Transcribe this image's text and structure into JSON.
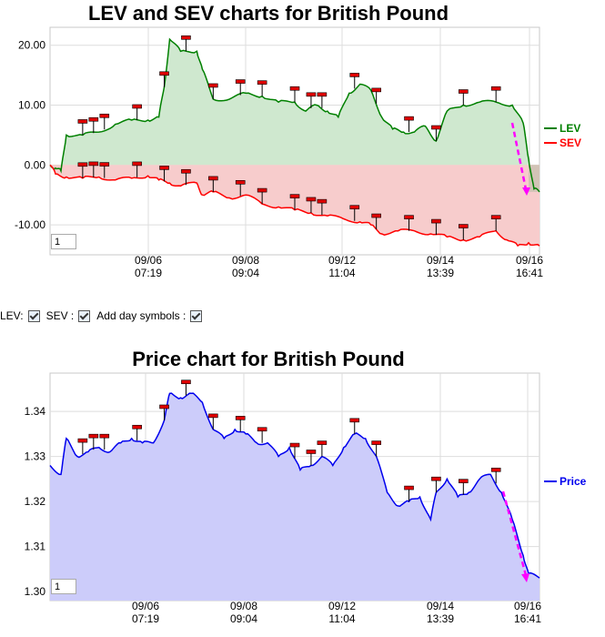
{
  "chart_data": [
    {
      "type": "line",
      "title": "LEV and SEV charts for British Pound",
      "x_ticks": [
        "09/06\n07:19",
        "09/08\n09:04",
        "09/12\n11:04",
        "09/14\n13:39",
        "09/16\n16:41"
      ],
      "y_ticks": [
        "20.00",
        "10.00",
        "0.00",
        "-10.00"
      ],
      "ylim": [
        -15,
        23
      ],
      "grid": true,
      "legend_position": "right",
      "series": [
        {
          "name": "LEV",
          "color": "#008000",
          "fill": "#cfe8cf",
          "points": [
            [
              0,
              0
            ],
            [
              1,
              -0.5
            ],
            [
              2,
              -1
            ],
            [
              3,
              5
            ],
            [
              6,
              5
            ],
            [
              9,
              5.5
            ],
            [
              12,
              6.8
            ],
            [
              15,
              7.5
            ],
            [
              18,
              7.5
            ],
            [
              20,
              8
            ],
            [
              21,
              13
            ],
            [
              22,
              21
            ],
            [
              24,
              19
            ],
            [
              27,
              19
            ],
            [
              28,
              16
            ],
            [
              30,
              11
            ],
            [
              33,
              11
            ],
            [
              36,
              12
            ],
            [
              39,
              11.5
            ],
            [
              42,
              10.5
            ],
            [
              45,
              10.5
            ],
            [
              47,
              9
            ],
            [
              49,
              10
            ],
            [
              51,
              9
            ],
            [
              53,
              8
            ],
            [
              55,
              12
            ],
            [
              57,
              13.5
            ],
            [
              59,
              12.5
            ],
            [
              61,
              8
            ],
            [
              63,
              6
            ],
            [
              65,
              5.5
            ],
            [
              67,
              5.5
            ],
            [
              69,
              6.5
            ],
            [
              71,
              4
            ],
            [
              73,
              9
            ],
            [
              76,
              10
            ],
            [
              79,
              10.5
            ],
            [
              82,
              10.5
            ],
            [
              85,
              10
            ],
            [
              87,
              7
            ],
            [
              88,
              1
            ],
            [
              89,
              -4
            ],
            [
              90,
              -4.5
            ]
          ],
          "day_symbol_points": [
            6,
            8,
            10,
            16,
            21,
            25,
            30,
            35,
            39,
            45,
            48,
            50,
            56,
            60,
            66,
            71,
            76,
            82
          ]
        },
        {
          "name": "SEV",
          "color": "#ff0000",
          "fill": "#f7cccc",
          "points": [
            [
              0,
              0
            ],
            [
              1,
              -1.5
            ],
            [
              3,
              -2
            ],
            [
              6,
              -2.2
            ],
            [
              9,
              -2
            ],
            [
              12,
              -2.5
            ],
            [
              15,
              -2.2
            ],
            [
              18,
              -1.8
            ],
            [
              20,
              -2.5
            ],
            [
              22,
              -3
            ],
            [
              24,
              -3.5
            ],
            [
              27,
              -3
            ],
            [
              28,
              -5
            ],
            [
              30,
              -4.5
            ],
            [
              33,
              -5.5
            ],
            [
              36,
              -5
            ],
            [
              39,
              -6.5
            ],
            [
              42,
              -7
            ],
            [
              45,
              -7.5
            ],
            [
              48,
              -8
            ],
            [
              51,
              -8.5
            ],
            [
              54,
              -9
            ],
            [
              57,
              -9.5
            ],
            [
              59,
              -10
            ],
            [
              61,
              -11.5
            ],
            [
              64,
              -11
            ],
            [
              67,
              -11
            ],
            [
              70,
              -11.5
            ],
            [
              73,
              -12
            ],
            [
              76,
              -12.5
            ],
            [
              79,
              -12
            ],
            [
              82,
              -11
            ],
            [
              84,
              -12.5
            ],
            [
              86,
              -13.5
            ],
            [
              88,
              -13
            ],
            [
              90,
              -13.5
            ]
          ],
          "day_symbol_points": [
            6,
            8,
            10,
            16,
            21,
            25,
            30,
            35,
            39,
            45,
            48,
            50,
            56,
            60,
            66,
            71,
            76,
            82
          ]
        }
      ]
    },
    {
      "type": "area",
      "title": "Price chart for British Pound",
      "x_ticks": [
        "09/06\n07:19",
        "09/08\n09:04",
        "09/12\n11:04",
        "09/14\n13:39",
        "09/16\n16:41"
      ],
      "y_ticks": [
        "1.34",
        "1.33",
        "1.32",
        "1.31",
        "1.30"
      ],
      "ylim": [
        1.298,
        1.3485
      ],
      "grid": true,
      "legend_position": "right",
      "series": [
        {
          "name": "Price",
          "color": "#0000ee",
          "fill": "#ccccfa",
          "points": [
            [
              0,
              1.328
            ],
            [
              2,
              1.326
            ],
            [
              3,
              1.334
            ],
            [
              5,
              1.33
            ],
            [
              7,
              1.331
            ],
            [
              9,
              1.332
            ],
            [
              11,
              1.331
            ],
            [
              13,
              1.333
            ],
            [
              15,
              1.334
            ],
            [
              17,
              1.333
            ],
            [
              19,
              1.333
            ],
            [
              21,
              1.338
            ],
            [
              22,
              1.344
            ],
            [
              24,
              1.343
            ],
            [
              26,
              1.344
            ],
            [
              28,
              1.342
            ],
            [
              30,
              1.336
            ],
            [
              32,
              1.334
            ],
            [
              34,
              1.336
            ],
            [
              36,
              1.335
            ],
            [
              38,
              1.333
            ],
            [
              40,
              1.333
            ],
            [
              42,
              1.33
            ],
            [
              44,
              1.332
            ],
            [
              46,
              1.327
            ],
            [
              48,
              1.328
            ],
            [
              50,
              1.33
            ],
            [
              52,
              1.328
            ],
            [
              54,
              1.332
            ],
            [
              56,
              1.335
            ],
            [
              58,
              1.334
            ],
            [
              60,
              1.33
            ],
            [
              62,
              1.322
            ],
            [
              64,
              1.319
            ],
            [
              66,
              1.32
            ],
            [
              68,
              1.321
            ],
            [
              70,
              1.316
            ],
            [
              71,
              1.322
            ],
            [
              73,
              1.325
            ],
            [
              75,
              1.321
            ],
            [
              77,
              1.322
            ],
            [
              79,
              1.325
            ],
            [
              81,
              1.326
            ],
            [
              83,
              1.322
            ],
            [
              85,
              1.316
            ],
            [
              87,
              1.308
            ],
            [
              88,
              1.304
            ],
            [
              90,
              1.303
            ]
          ],
          "day_symbol_points": [
            6,
            8,
            10,
            16,
            21,
            25,
            30,
            35,
            39,
            45,
            48,
            50,
            56,
            60,
            66,
            71,
            76,
            82
          ]
        }
      ]
    }
  ],
  "controls": {
    "lev_label": "LEV:",
    "sev_label": "SEV :",
    "day_symbols_label": "Add day symbols :"
  },
  "page_box_1": "1",
  "page_box_2": "1"
}
